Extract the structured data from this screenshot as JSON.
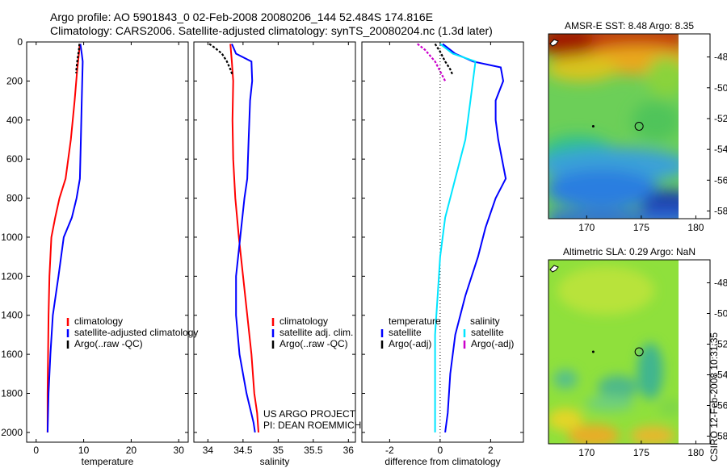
{
  "header": {
    "line1": "Argo profile: AO 5901843_0 02-Feb-2008 20080206_144 52.484S 174.816E",
    "line2": "Climatology: CARS2006. Satellite-adjusted climatology: synTS_20080204.nc (1.3d later)"
  },
  "stamp": "CSIRO 12-Feb-2008 10:31:35",
  "colors": {
    "climatology": "#ff0000",
    "satellite": "#0000ff",
    "argo": "#000000",
    "sat_salinity": "#00e5ff",
    "argo_salinity": "#cc00cc"
  },
  "chart_data": [
    {
      "type": "line",
      "panel": "temperature",
      "xlabel": "temperature",
      "ylabel": "",
      "xlim": [
        -2,
        32
      ],
      "ylim": [
        2050,
        0
      ],
      "xticks": [
        "0",
        "10",
        "20",
        "30"
      ],
      "yticks": [
        "0",
        "200",
        "400",
        "600",
        "800",
        "1000",
        "1200",
        "1400",
        "1600",
        "1800",
        "2000"
      ],
      "series": [
        {
          "name": "climatology",
          "color": "#ff0000",
          "style": "solid",
          "x": [
            9.2,
            9.0,
            8.6,
            8.1,
            7.3,
            6.2,
            4.9,
            4.0,
            3.2,
            2.8,
            2.6,
            2.5,
            2.4,
            2.4
          ],
          "y": [
            10,
            60,
            150,
            300,
            500,
            700,
            800,
            900,
            1000,
            1200,
            1400,
            1600,
            1800,
            2000
          ]
        },
        {
          "name": "satellite-adjusted climatology",
          "color": "#0000ff",
          "style": "solid",
          "x": [
            9.3,
            9.6,
            9.8,
            9.6,
            9.4,
            9.2,
            8.5,
            7.5,
            5.8,
            4.7,
            3.5,
            3.0,
            2.6,
            2.4
          ],
          "y": [
            10,
            60,
            100,
            300,
            500,
            700,
            800,
            900,
            1000,
            1200,
            1400,
            1600,
            1800,
            2000
          ]
        },
        {
          "name": "Argo(..raw -QC)",
          "color": "#000000",
          "style": "dashed",
          "x": [
            9.1,
            9.0,
            8.7,
            8.5,
            8.4
          ],
          "y": [
            10,
            40,
            90,
            130,
            160
          ]
        }
      ],
      "legend": {
        "placement": "bottom-right",
        "entries": [
          "climatology",
          "satellite-adjusted climatology",
          "Argo(..raw -QC)"
        ]
      }
    },
    {
      "type": "line",
      "panel": "salinity",
      "xlabel": "salinity",
      "ylabel": "",
      "xlim": [
        33.8,
        36.1
      ],
      "ylim": [
        2050,
        0
      ],
      "xticks": [
        "34",
        "34.5",
        "35",
        "35.5",
        "36"
      ],
      "series": [
        {
          "name": "climatology",
          "color": "#ff0000",
          "style": "solid",
          "x": [
            34.32,
            34.34,
            34.36,
            34.35,
            34.36,
            34.39,
            34.44,
            34.5,
            34.56,
            34.62,
            34.66,
            34.7,
            34.72
          ],
          "y": [
            10,
            100,
            200,
            400,
            600,
            800,
            1000,
            1200,
            1400,
            1600,
            1800,
            1900,
            2000
          ]
        },
        {
          "name": "satellite adj. clim.",
          "color": "#0000ff",
          "style": "solid",
          "x": [
            34.34,
            34.4,
            34.62,
            34.63,
            34.6,
            34.58,
            34.56,
            34.52,
            34.46,
            34.4,
            34.4,
            34.45,
            34.55,
            34.65,
            34.67
          ],
          "y": [
            10,
            60,
            100,
            200,
            300,
            500,
            700,
            800,
            1000,
            1200,
            1400,
            1600,
            1800,
            1950,
            2000
          ]
        },
        {
          "name": "Argo(..raw -QC)",
          "color": "#000000",
          "style": "dashed",
          "x": [
            34.02,
            34.1,
            34.2,
            34.27,
            34.32,
            34.35
          ],
          "y": [
            10,
            30,
            60,
            100,
            140,
            170
          ]
        }
      ],
      "legend": {
        "placement": "bottom-right",
        "entries": [
          "climatology",
          "satellite adj. clim.",
          "Argo(..raw -QC)"
        ]
      },
      "annotations": [
        "US ARGO PROJECT",
        "PI: DEAN ROEMMICH"
      ]
    },
    {
      "type": "line",
      "panel": "difference",
      "xlabel": "difference from climatology",
      "ylabel": "",
      "xlim": [
        -3.1,
        3.3
      ],
      "ylim": [
        2050,
        0
      ],
      "xticks": [
        "-2",
        "0",
        "2"
      ],
      "series": [
        {
          "name": "temperature satellite",
          "color": "#0000ff",
          "style": "solid",
          "x": [
            0.1,
            0.6,
            1.3,
            2.4,
            2.5,
            2.2,
            2.2,
            2.3,
            2.6,
            2.2,
            1.8,
            1.5,
            1.0,
            0.6,
            0.4,
            0.3,
            0.2
          ],
          "y": [
            10,
            60,
            100,
            130,
            200,
            300,
            400,
            500,
            700,
            800,
            950,
            1100,
            1300,
            1500,
            1700,
            1900,
            2000
          ]
        },
        {
          "name": "salinity satellite",
          "color": "#00e5ff",
          "style": "solid",
          "x": [
            0.0,
            0.5,
            1.4,
            1.3,
            1.2,
            1.0,
            0.6,
            0.2,
            0.0,
            -0.1,
            -0.2,
            -0.2,
            -0.2
          ],
          "y": [
            10,
            60,
            100,
            200,
            300,
            500,
            700,
            900,
            1100,
            1300,
            1500,
            1800,
            2000
          ]
        },
        {
          "name": "temperature Argo(-adj)",
          "color": "#000000",
          "style": "dashed",
          "x": [
            -0.2,
            0.0,
            0.2,
            0.4,
            0.5
          ],
          "y": [
            10,
            50,
            100,
            140,
            170
          ]
        },
        {
          "name": "salinity Argo(-adj)",
          "color": "#cc00cc",
          "style": "dashed",
          "x": [
            -0.9,
            -0.6,
            -0.2,
            0.0,
            0.2
          ],
          "y": [
            10,
            40,
            100,
            150,
            200
          ]
        }
      ],
      "zero_line": 0,
      "legend": {
        "placement": "bottom",
        "headers": [
          "temperature",
          "salinity"
        ],
        "entries": [
          "satellite",
          "Argo(-adj)",
          "satellite",
          "Argo(-adj)"
        ]
      }
    },
    {
      "type": "heatmap",
      "panel": "sst_map",
      "title": "AMSR-E SST: 8.48  Argo: 8.35",
      "xlim": [
        166.5,
        181.3
      ],
      "ylim": [
        -58.5,
        -46.5
      ],
      "xticks": [
        "170",
        "175",
        "180"
      ],
      "yticks": [
        "-48",
        "-50",
        "-52",
        "-54",
        "-56",
        "-58"
      ],
      "marker": {
        "lon": 174.8,
        "lat": -52.5
      }
    },
    {
      "type": "heatmap",
      "panel": "sla_map",
      "title": "Altimetric SLA: 0.29  Argo: NaN",
      "xlim": [
        166.5,
        181.3
      ],
      "ylim": [
        -58.5,
        -46.5
      ],
      "xticks": [
        "170",
        "175",
        "180"
      ],
      "yticks": [
        "-48",
        "-50",
        "-52",
        "-54",
        "-56",
        "-58"
      ],
      "marker": {
        "lon": 174.8,
        "lat": -52.5
      }
    }
  ]
}
